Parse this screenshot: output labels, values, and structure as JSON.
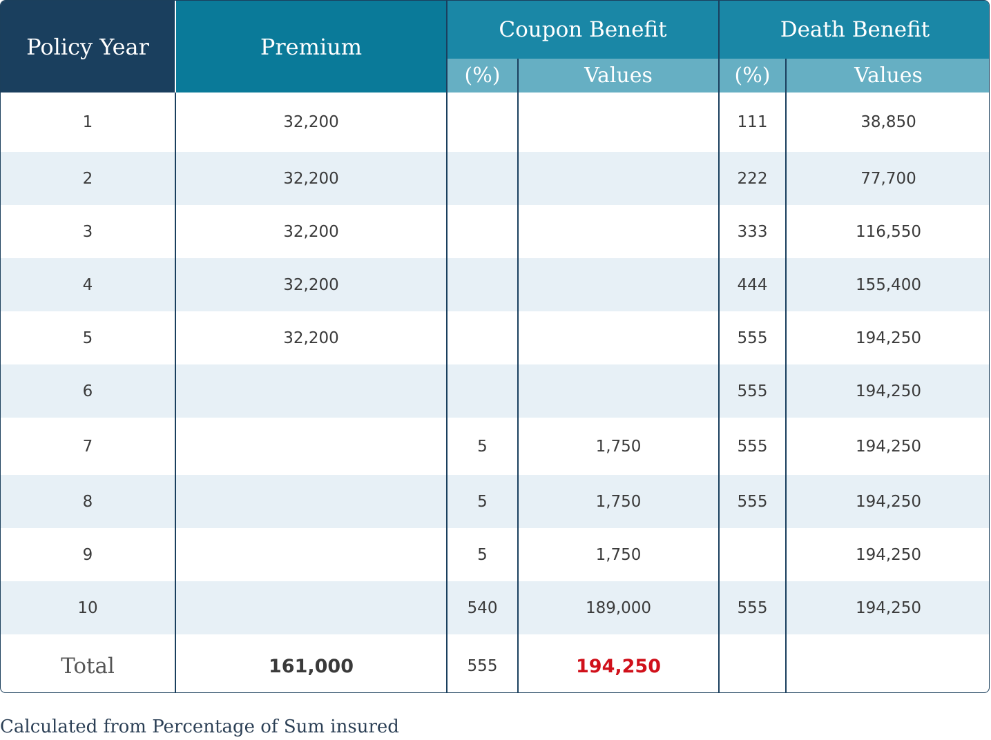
{
  "header": {
    "policy_year": "Policy Year",
    "premium": "Premium",
    "coupon_benefit": "Coupon Benefit",
    "death_benefit": "Death Benefit",
    "coupon_pct": "(%)",
    "coupon_values": "Values",
    "death_pct": "(%)",
    "death_values": "Values"
  },
  "rows": [
    {
      "year": "1",
      "premium": "32,200",
      "coupon_pct": "",
      "coupon_value": "",
      "death_pct": "111",
      "death_value": "38,850"
    },
    {
      "year": "2",
      "premium": "32,200",
      "coupon_pct": "",
      "coupon_value": "",
      "death_pct": "222",
      "death_value": "77,700"
    },
    {
      "year": "3",
      "premium": "32,200",
      "coupon_pct": "",
      "coupon_value": "",
      "death_pct": "333",
      "death_value": "116,550"
    },
    {
      "year": "4",
      "premium": "32,200",
      "coupon_pct": "",
      "coupon_value": "",
      "death_pct": "444",
      "death_value": "155,400"
    },
    {
      "year": "5",
      "premium": "32,200",
      "coupon_pct": "",
      "coupon_value": "",
      "death_pct": "555",
      "death_value": "194,250"
    },
    {
      "year": "6",
      "premium": "",
      "coupon_pct": "",
      "coupon_value": "",
      "death_pct": "555",
      "death_value": "194,250"
    },
    {
      "year": "7",
      "premium": "",
      "coupon_pct": "5",
      "coupon_value": "1,750",
      "death_pct": "555",
      "death_value": "194,250"
    },
    {
      "year": "8",
      "premium": "",
      "coupon_pct": "5",
      "coupon_value": "1,750",
      "death_pct": "555",
      "death_value": "194,250"
    },
    {
      "year": "9",
      "premium": "",
      "coupon_pct": "5",
      "coupon_value": "1,750",
      "death_pct": "",
      "death_value": "194,250"
    },
    {
      "year": "10",
      "premium": "",
      "coupon_pct": "540",
      "coupon_value": "189,000",
      "death_pct": "555",
      "death_value": "194,250"
    }
  ],
  "total": {
    "label": "Total",
    "premium": "161,000",
    "coupon_pct": "555",
    "coupon_value": "194,250",
    "death_pct": "",
    "death_value": ""
  },
  "footnote": "Calculated from Percentage of Sum insured",
  "colors": {
    "policy_header": "#1a3f5e",
    "premium_header": "#0a7a99",
    "group_header": "#1a87a6",
    "sub_header": "#66afc3",
    "alt_row": "#e7f0f6",
    "total_highlight": "#d0101a"
  }
}
